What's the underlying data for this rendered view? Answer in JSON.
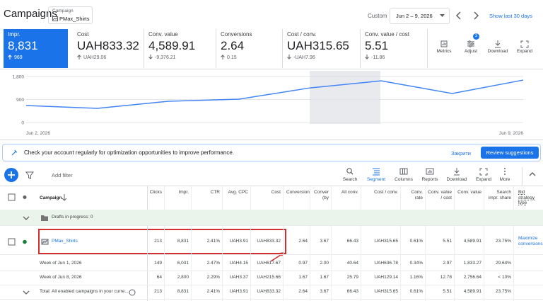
{
  "header": {
    "title": "Campaigns",
    "campaign_label": "Campaign",
    "campaign": "PMax_Shirts",
    "range_label": "Custom",
    "date_range": "Jun 2 – 9, 2026",
    "shortcut": "Show last 30 days"
  },
  "metrics": [
    {
      "label": "Impr.",
      "value": "8,831",
      "change": "969",
      "trend": "up"
    },
    {
      "label": "Cost",
      "value": "UAH833.32",
      "change": "UAH29.06",
      "trend": "up"
    },
    {
      "label": "Conv. value",
      "value": "4,589.91",
      "change": "-9,376.21",
      "trend": "down"
    },
    {
      "label": "Conversions",
      "value": "2.64",
      "change": "0.15",
      "trend": "up"
    },
    {
      "label": "Cost / conv.",
      "value": "UAH315.65",
      "change": "-UAH7.96",
      "trend": "down"
    },
    {
      "label": "Conv. value / cost",
      "value": "5.51",
      "change": "-11.86",
      "trend": "down"
    }
  ],
  "metric_tools": {
    "items": [
      "Metrics",
      "Adjust",
      "Download",
      "Expand"
    ],
    "adjust_badge": "3"
  },
  "chart_data": {
    "type": "line",
    "categories": [
      "Jun 2, 2026",
      null,
      null,
      null,
      null,
      null,
      null,
      "Jun 9, 2026"
    ],
    "values": [
      665,
      555,
      830,
      915,
      1355,
      1630,
      1135,
      1660
    ],
    "color": "#4285f4",
    "ylim": [
      0,
      1800
    ],
    "yticks": [
      0,
      900,
      {
        "value": 1800,
        "label": "1,800"
      }
    ],
    "grid": true
  },
  "banner": {
    "text": "Check your account regularly for optimization opportunities to improve performance.",
    "dismiss": "Закрити",
    "action": "Review suggestions"
  },
  "toolbar": {
    "filter": "Add filter",
    "items": [
      "Search",
      "Segment",
      "Columns",
      "Reports",
      "Download",
      "Expand",
      "More"
    ]
  },
  "table": {
    "campaign_header": "Campaign",
    "columns": [
      "Clicks",
      "Impr.",
      "CTR",
      "Avg. CPC",
      "Cost",
      "Conversion",
      "Conver (by",
      "All conv.",
      "Cost / conv.",
      "Conv. rate",
      "Conv. value / cost",
      "Conv. value",
      "Search impr. share",
      "Bid strategy type"
    ],
    "rows": [
      {
        "label": "Drafts in progress: 0",
        "cells": []
      },
      {
        "label": "PMax_Shirts",
        "cells": [
          "213",
          "8,831",
          "2.41%",
          "UAH3.91",
          "UAH833.32",
          "2.64",
          "3.67",
          "66.43",
          "UAH315.65",
          "0.61%",
          "5.51",
          "4,589.91",
          "23.75%",
          "Maximize conversions"
        ]
      },
      {
        "label": "Week of Jun 1, 2026",
        "cells": [
          "149",
          "6,031",
          "2.47%",
          "UAH4.15",
          "UAH617.67",
          "0.97",
          "2.00",
          "40.64",
          "UAH636.78",
          "0.34%",
          "2.97",
          "1,833.27",
          "29.64%"
        ]
      },
      {
        "label": "Week of Jun 8, 2026",
        "cells": [
          "64",
          "2,800",
          "2.29%",
          "UAH3.37",
          "UAH215.66",
          "1.67",
          "1.67",
          "25.79",
          "UAH129.14",
          "1.16%",
          "12.78",
          "2,756.64",
          "< 10%"
        ]
      },
      {
        "label": "Total: All enabled campaigns in your curre...",
        "cells": [
          "213",
          "8,831",
          "2.41%",
          "UAH3.91",
          "UAH833.32",
          "2.64",
          "3.67",
          "66.43",
          "UAH315.65",
          "0.61%",
          "5.51",
          "4,589.91",
          "23.75%"
        ]
      }
    ]
  }
}
